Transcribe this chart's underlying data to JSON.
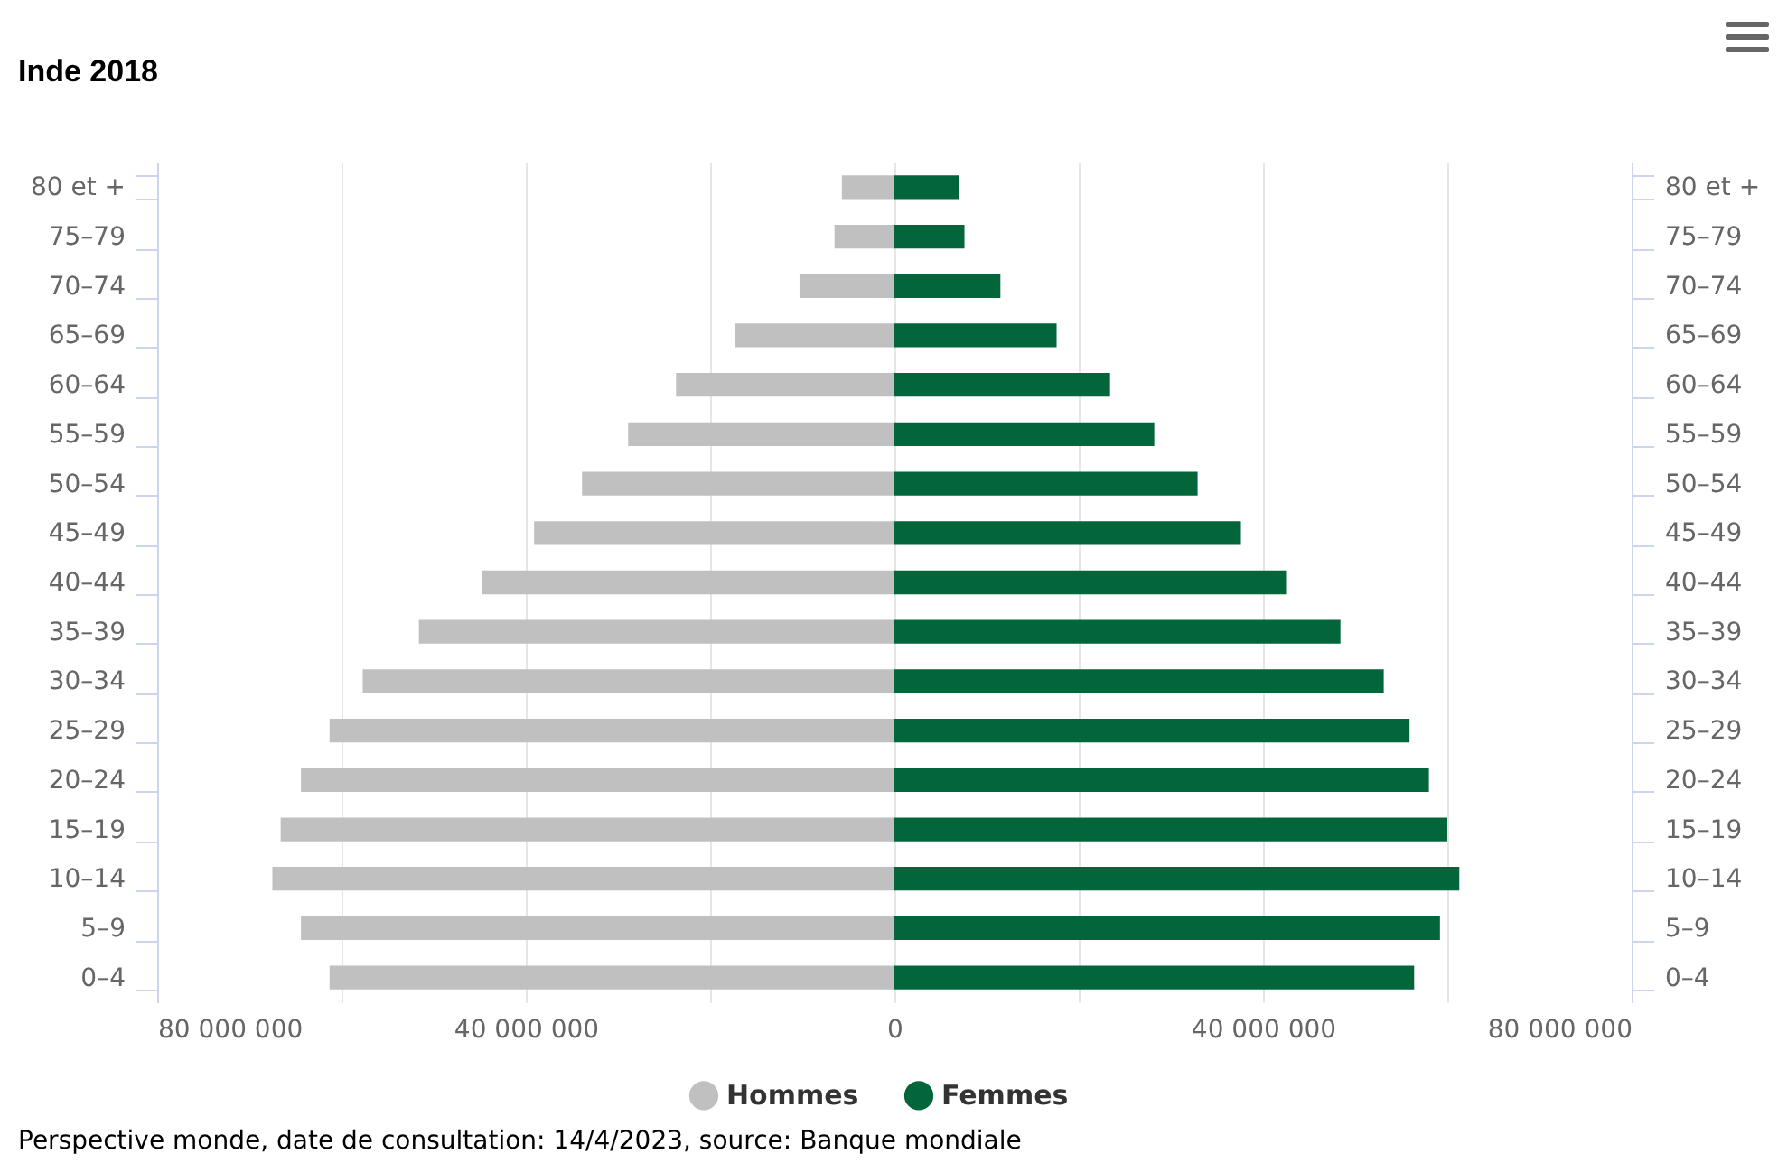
{
  "chart_data": {
    "type": "bar",
    "orientation": "horizontal",
    "title": "Inde 2018",
    "categories": [
      "80 et +",
      "75–79",
      "70–74",
      "65–69",
      "60–64",
      "55–59",
      "50–54",
      "45–49",
      "40–44",
      "35–39",
      "30–34",
      "25–29",
      "20–24",
      "15–19",
      "10–14",
      "5–9",
      "0–4"
    ],
    "series": [
      {
        "name": "Hommes",
        "color": "#c0c0c0",
        "values": [
          -5700000,
          -6500000,
          -10300000,
          -17300000,
          -23700000,
          -28900000,
          -33900000,
          -39100000,
          -44800000,
          -51600000,
          -57700000,
          -61300000,
          -64400000,
          -66600000,
          -67500000,
          -64400000,
          -61300000
        ]
      },
      {
        "name": "Femmes",
        "color": "#03663a",
        "values": [
          7000000,
          7600000,
          11500000,
          17600000,
          23400000,
          28200000,
          32900000,
          37600000,
          42500000,
          48400000,
          53100000,
          55900000,
          58000000,
          60000000,
          61300000,
          59200000,
          56400000
        ]
      }
    ],
    "xlim": [
      -80000000,
      80000000
    ],
    "xticks": [
      {
        "value": -80000000,
        "label": "80 000 000"
      },
      {
        "value": -60000000,
        "label": null
      },
      {
        "value": -40000000,
        "label": "40 000 000"
      },
      {
        "value": -20000000,
        "label": null
      },
      0,
      {
        "value": 20000000,
        "label": null
      },
      {
        "value": 40000000,
        "label": "40 000 000"
      },
      {
        "value": 60000000,
        "label": null
      },
      {
        "value": 80000000,
        "label": "80 000 000"
      }
    ],
    "grid": "x",
    "legend": "bottom",
    "stacked": true,
    "annotations": [
      "Perspective monde, date de consultation: 14/4/2023, source: Banque mondiale"
    ]
  }
}
